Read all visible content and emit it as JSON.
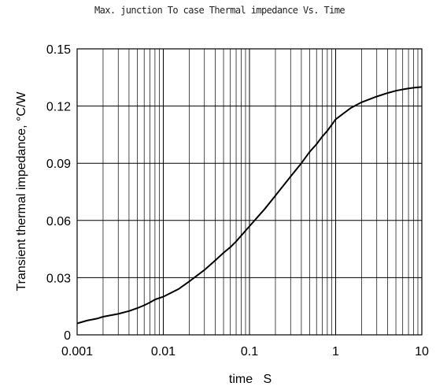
{
  "chart_data": {
    "type": "line",
    "title": "Max. junction To case Thermal impedance Vs. Time",
    "xlabel": "time   S",
    "ylabel": "Transient thermal impedance, °C/W",
    "x_scale": "log",
    "xlim": [
      0.001,
      10
    ],
    "ylim": [
      0,
      0.15
    ],
    "grid": true,
    "x_ticks": [
      "0.001",
      "0.01",
      "0.1",
      "1",
      "10"
    ],
    "y_ticks": [
      "0",
      "0.03",
      "0.06",
      "0.09",
      "0.12",
      "0.15"
    ],
    "series": [
      {
        "name": "",
        "color": "#000000",
        "x": [
          0.001,
          0.0013,
          0.0017,
          0.002,
          0.003,
          0.004,
          0.005,
          0.006,
          0.007,
          0.008,
          0.01,
          0.015,
          0.02,
          0.03,
          0.04,
          0.05,
          0.06,
          0.07,
          0.08,
          0.1,
          0.15,
          0.2,
          0.3,
          0.4,
          0.5,
          0.6,
          0.7,
          0.8,
          1,
          1.5,
          2,
          3,
          4,
          5,
          6,
          7,
          8,
          10
        ],
        "y": [
          0.006,
          0.0075,
          0.0085,
          0.0095,
          0.011,
          0.0125,
          0.014,
          0.0155,
          0.017,
          0.0185,
          0.02,
          0.024,
          0.028,
          0.034,
          0.039,
          0.043,
          0.046,
          0.049,
          0.052,
          0.057,
          0.066,
          0.073,
          0.083,
          0.09,
          0.096,
          0.1,
          0.104,
          0.107,
          0.113,
          0.119,
          0.122,
          0.125,
          0.1268,
          0.128,
          0.1287,
          0.1292,
          0.1296,
          0.13
        ]
      }
    ]
  }
}
